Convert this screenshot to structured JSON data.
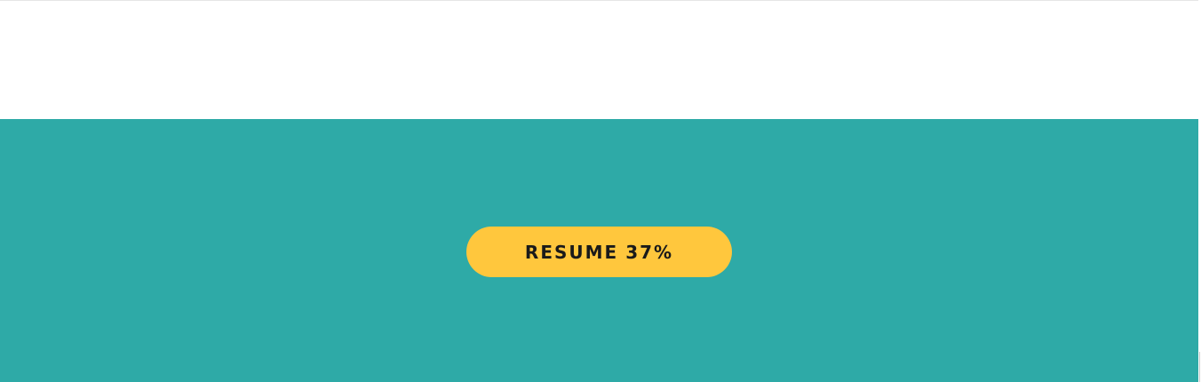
{
  "colors": {
    "hero_background": "#2eaaa7",
    "button_background": "#ffc73d",
    "button_text": "#1a1a1a"
  },
  "resume_button": {
    "label": "RESUME",
    "progress": "37%"
  }
}
